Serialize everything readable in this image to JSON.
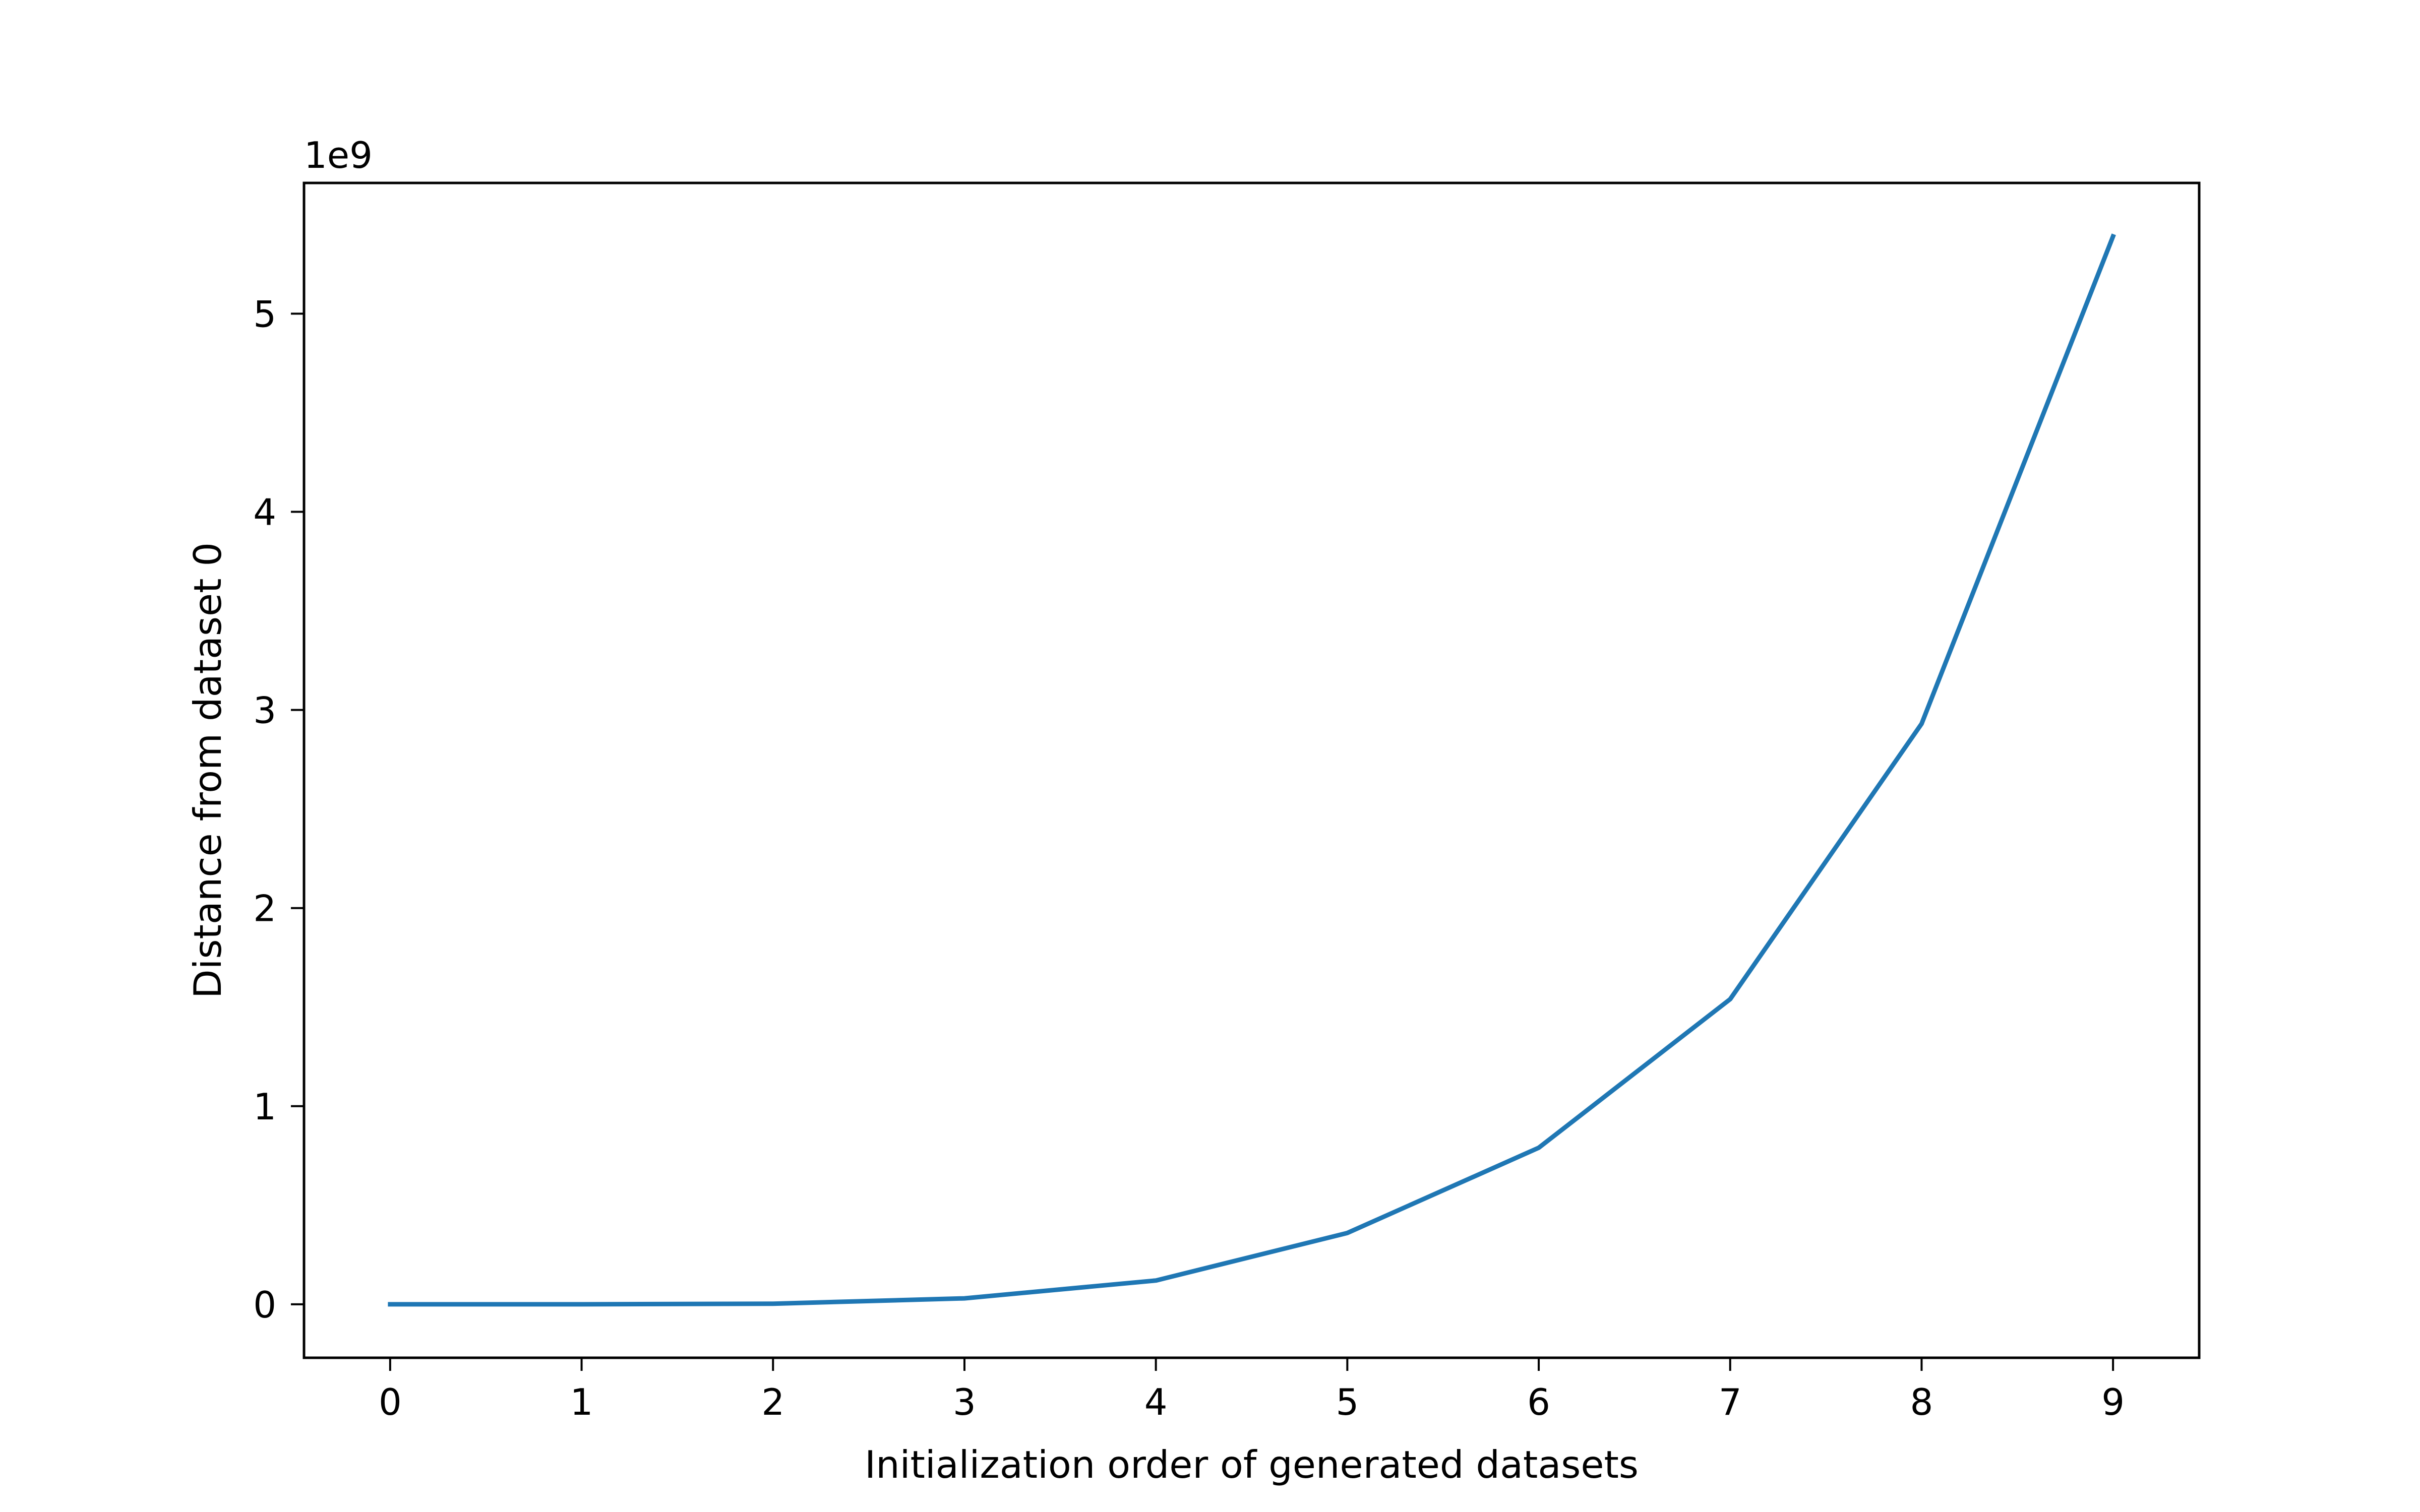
{
  "chart_data": {
    "type": "line",
    "title": "",
    "xlabel": "Initialization order of generated datasets",
    "ylabel": "Distance from dataset 0",
    "y_offset_label": "1e9",
    "x": [
      0,
      1,
      2,
      3,
      4,
      5,
      6,
      7,
      8,
      9
    ],
    "xlim": [
      -0.45,
      9.45
    ],
    "ylim": [
      -0.27,
      5.66
    ],
    "x_ticks": [
      0,
      1,
      2,
      3,
      4,
      5,
      6,
      7,
      8,
      9
    ],
    "x_tick_labels": [
      "0",
      "1",
      "2",
      "3",
      "4",
      "5",
      "6",
      "7",
      "8",
      "9"
    ],
    "y_ticks": [
      0,
      1,
      2,
      3,
      4,
      5
    ],
    "y_tick_labels": [
      "0",
      "1",
      "2",
      "3",
      "4",
      "5"
    ],
    "grid": false,
    "legend": "none",
    "series": [
      {
        "color": "#1f77b4",
        "values": [
          0.0,
          0.0,
          0.003,
          0.03,
          0.12,
          0.36,
          0.79,
          1.54,
          2.93,
          5.39
        ]
      }
    ]
  }
}
